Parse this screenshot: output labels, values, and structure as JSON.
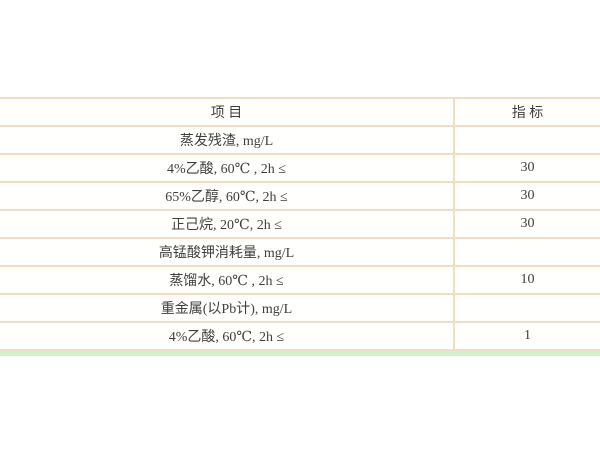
{
  "table": {
    "headers": {
      "item": "项 目",
      "indicator": "指 标"
    },
    "rows": [
      {
        "item": "蒸发残渣, mg/L",
        "indicator": ""
      },
      {
        "item": "4%乙酸, 60℃ , 2h ≤",
        "indicator": "30"
      },
      {
        "item": "65%乙醇, 60℃, 2h ≤",
        "indicator": "30"
      },
      {
        "item": "正己烷, 20℃, 2h ≤",
        "indicator": "30"
      },
      {
        "item": "高锰酸钾消耗量, mg/L",
        "indicator": ""
      },
      {
        "item": "蒸馏水, 60℃ , 2h ≤",
        "indicator": "10"
      },
      {
        "item": "重金属(以Pb计), mg/L",
        "indicator": ""
      },
      {
        "item": "4%乙酸, 60℃, 2h ≤",
        "indicator": "1"
      }
    ],
    "colors": {
      "border": "#f2dcc2",
      "bottom_strip": "#cdf2cd",
      "text": "#3f3f3f",
      "cell_background": "#fffffd"
    }
  }
}
